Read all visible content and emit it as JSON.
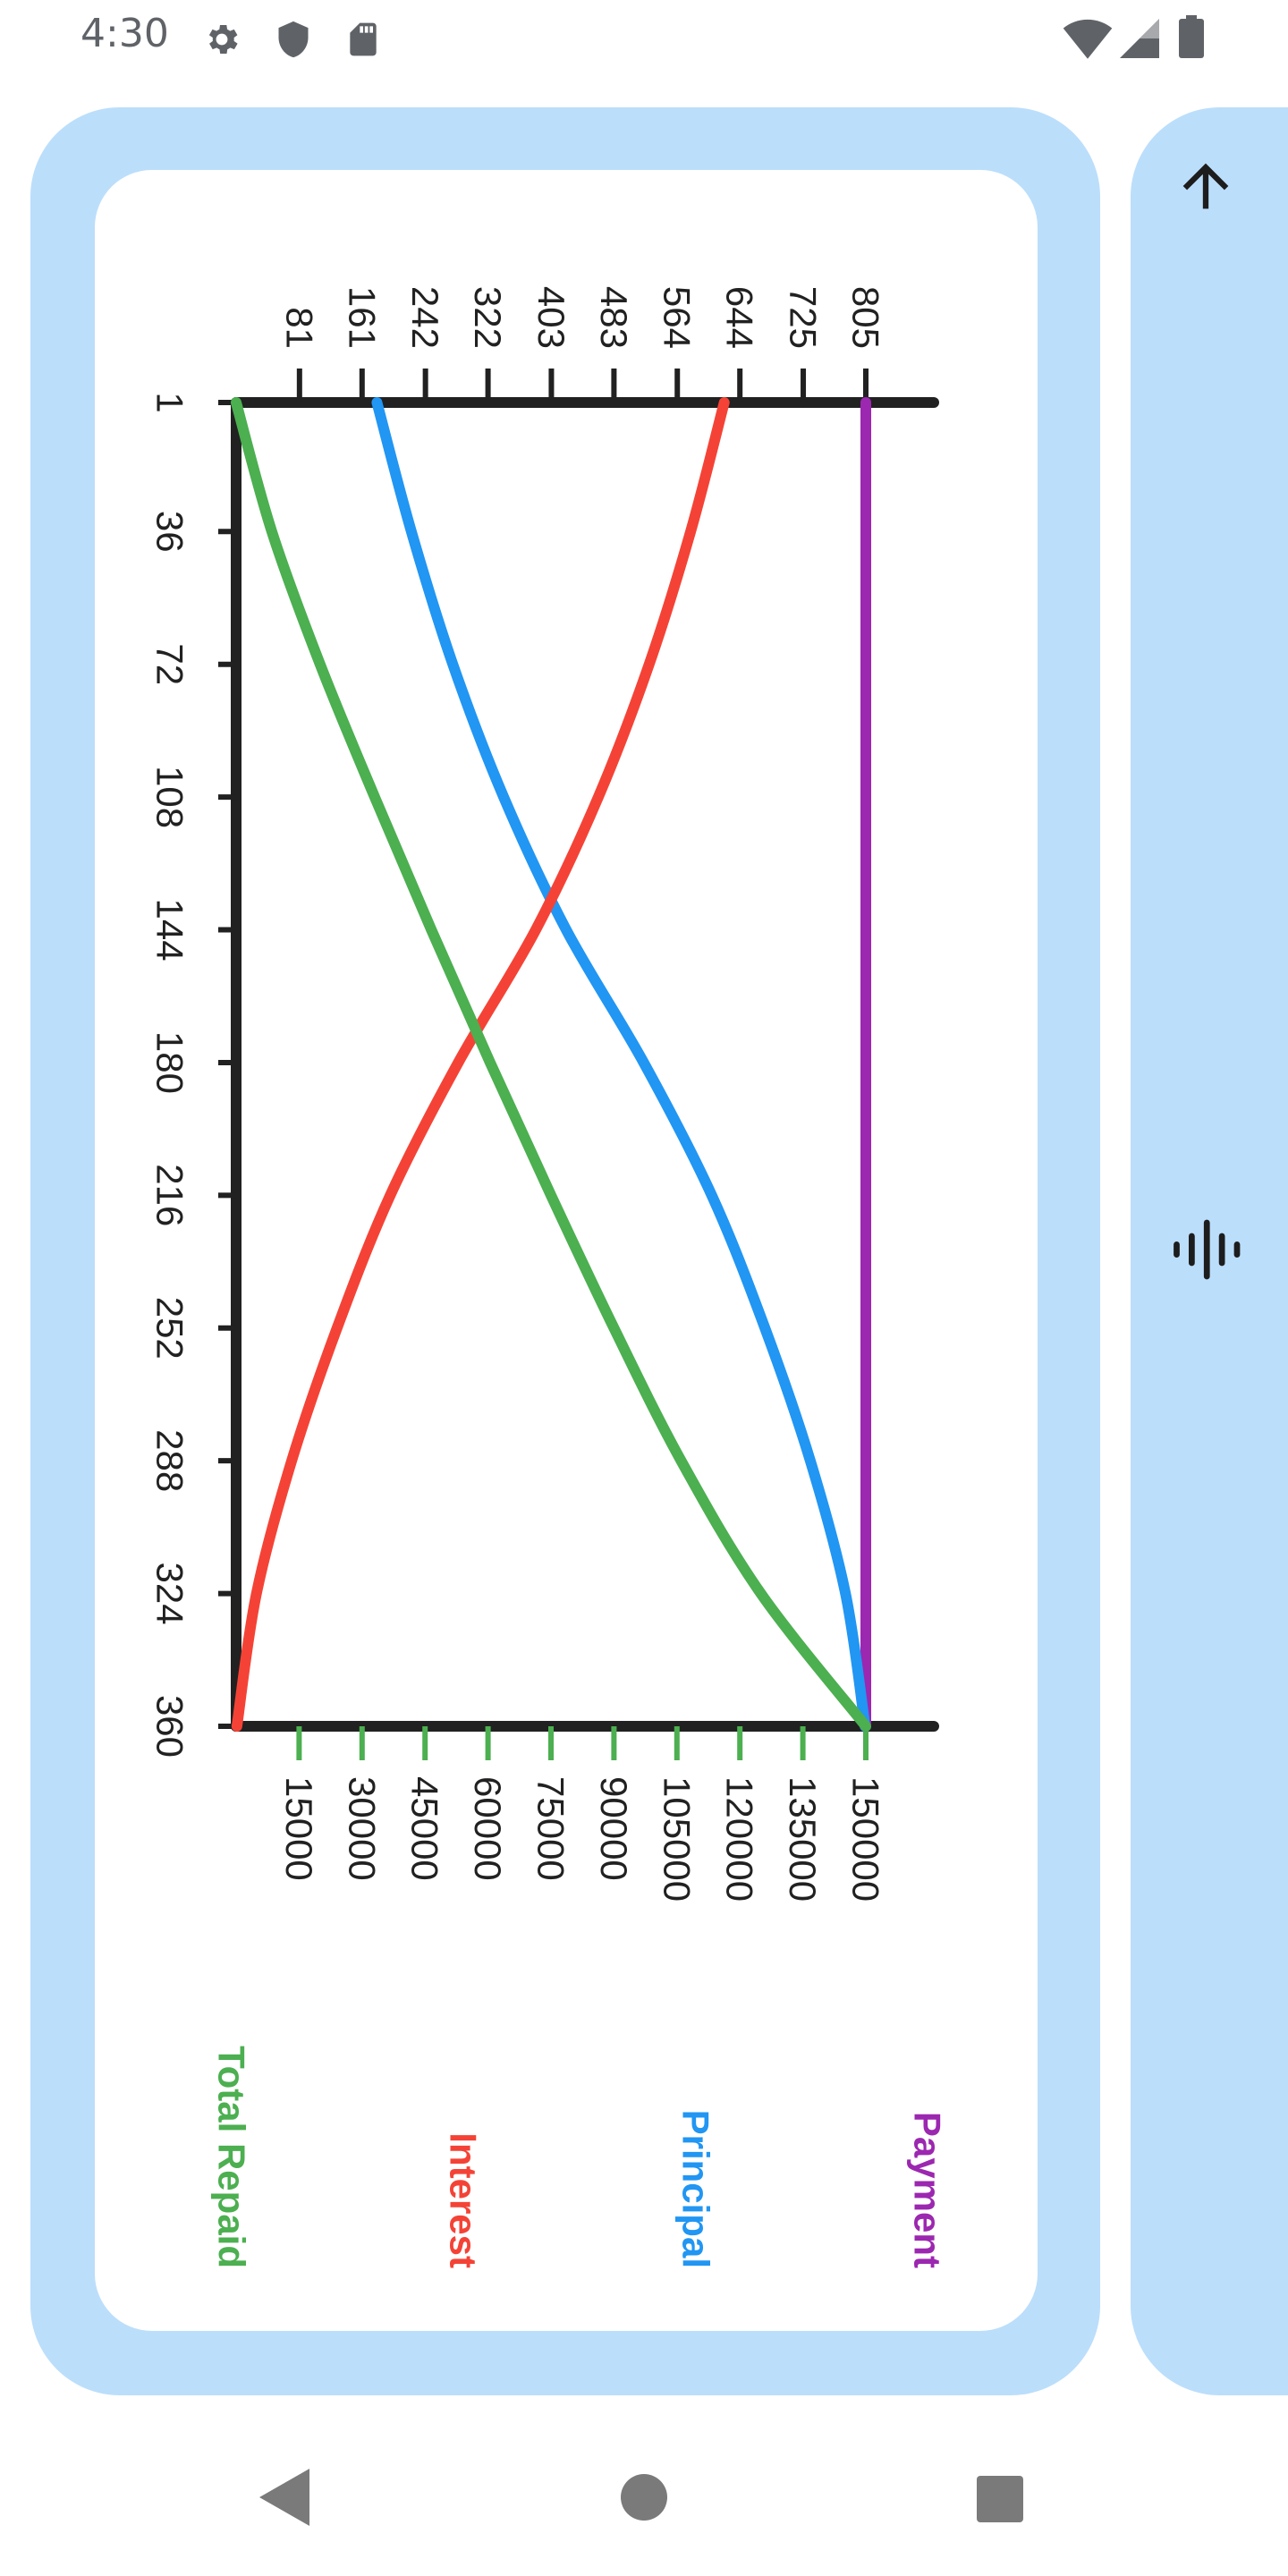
{
  "status_bar": {
    "time": "4:30",
    "icons_left": [
      "gear-icon",
      "shield-icon",
      "sd-card-icon"
    ],
    "icons_right": [
      "wifi-icon",
      "cell-signal-icon",
      "battery-icon"
    ]
  },
  "side_panel": {
    "icons": [
      "arrow-up-icon",
      "waveform-icon"
    ]
  },
  "colors": {
    "panel_bg": "#bbdefb",
    "payment": "#9c27b0",
    "principal": "#2196f3",
    "interest": "#f44336",
    "total_repaid": "#4caf50",
    "axis": "#212121"
  },
  "chart_data": {
    "type": "line",
    "orientation": "rotated 90° clockwise",
    "x": {
      "label": "",
      "range": [
        1,
        360
      ],
      "ticks": [
        "1",
        "36",
        "72",
        "108",
        "144",
        "180",
        "216",
        "252",
        "288",
        "324",
        "360"
      ]
    },
    "y_left": {
      "label": "",
      "range": [
        0,
        805
      ],
      "ticks": [
        "81",
        "161",
        "242",
        "322",
        "403",
        "483",
        "564",
        "644",
        "725",
        "805"
      ]
    },
    "y_right": {
      "label": "",
      "range": [
        0,
        150000
      ],
      "ticks": [
        "15000",
        "30000",
        "45000",
        "60000",
        "75000",
        "90000",
        "105000",
        "120000",
        "135000",
        "150000"
      ]
    },
    "series": [
      {
        "name": "Payment",
        "axis": "left",
        "color": "#9c27b0",
        "points": [
          [
            1,
            805
          ],
          [
            36,
            805
          ],
          [
            72,
            805
          ],
          [
            108,
            805
          ],
          [
            144,
            805
          ],
          [
            180,
            805
          ],
          [
            216,
            805
          ],
          [
            252,
            805
          ],
          [
            288,
            805
          ],
          [
            324,
            805
          ],
          [
            360,
            805
          ]
        ]
      },
      {
        "name": "Principal",
        "axis": "left",
        "color": "#2196f3",
        "points": [
          [
            1,
            180
          ],
          [
            36,
            224
          ],
          [
            72,
            277
          ],
          [
            108,
            342
          ],
          [
            144,
            422
          ],
          [
            180,
            521
          ],
          [
            216,
            608
          ],
          [
            252,
            676
          ],
          [
            288,
            734
          ],
          [
            324,
            779
          ],
          [
            360,
            804
          ]
        ]
      },
      {
        "name": "Interest",
        "axis": "left",
        "color": "#f44336",
        "points": [
          [
            1,
            624
          ],
          [
            36,
            581
          ],
          [
            72,
            528
          ],
          [
            108,
            463
          ],
          [
            144,
            383
          ],
          [
            180,
            284
          ],
          [
            216,
            197
          ],
          [
            252,
            129
          ],
          [
            288,
            71
          ],
          [
            324,
            26
          ],
          [
            360,
            1
          ]
        ]
      },
      {
        "name": "Total Repaid",
        "axis": "right",
        "color": "#4caf50",
        "points": [
          [
            1,
            0
          ],
          [
            36,
            8500
          ],
          [
            72,
            20000
          ],
          [
            108,
            33000
          ],
          [
            144,
            46500
          ],
          [
            180,
            60500
          ],
          [
            216,
            75000
          ],
          [
            252,
            90000
          ],
          [
            288,
            106000
          ],
          [
            324,
            125000
          ],
          [
            360,
            150000
          ]
        ]
      }
    ],
    "legend": [
      "Payment",
      "Principal",
      "Interest",
      "Total Repaid"
    ],
    "legend_position": "bottom",
    "grid": false
  }
}
